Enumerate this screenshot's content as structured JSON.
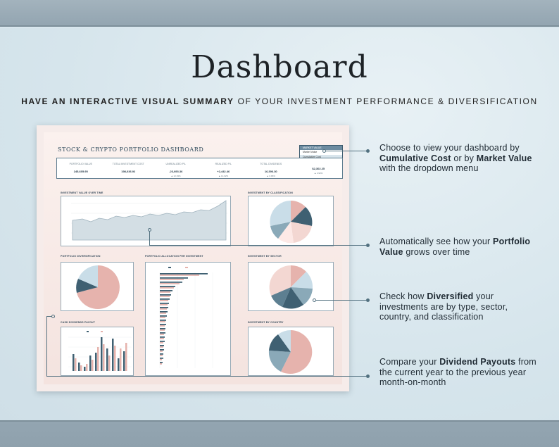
{
  "header": {
    "title": "Dashboard",
    "subtitle_bold": "HAVE AN INTERACTIVE VISUAL SUMMARY",
    "subtitle_rest": " OF YOUR INVESTMENT PERFORMANCE & DIVERSIFICATION"
  },
  "dashboard": {
    "title": "STOCK & CRYPTO PORTFOLIO DASHBOARD",
    "dropdown": {
      "selected": "MARKET VALUE",
      "options": [
        "Market Value",
        "Cumulative Cost"
      ]
    },
    "kpis": [
      {
        "label": "PORTFOLIO VALUE",
        "value": "245,605.95",
        "delta": ""
      },
      {
        "label": "TOTAL INVESTMENT COST",
        "value": "198,036.92",
        "delta": ""
      },
      {
        "label": "UNREALIZED P/L",
        "value": "-23,693.36",
        "delta": "▲ 12.03%"
      },
      {
        "label": "REALIZED P/L",
        "value": "+2,442.46",
        "delta": "▲ 14.92%"
      },
      {
        "label": "TOTAL DIVIDENDS",
        "value": "16,396.30",
        "delta": "▲ 0.96%"
      },
      {
        "label": "",
        "value": "$2,302.25",
        "delta": "▲ 2.92%"
      }
    ],
    "panels": {
      "value_over_time": "INVESTMENT VALUE OVER TIME",
      "by_classification": "INVESTMENT BY CLASSIFICATION",
      "diversification": "PORTFOLIO DIVERSIFICATION",
      "allocation": "PORTFOLIO ALLOCATION PER INVESTMENT",
      "by_sector": "INVESTMENT BY SECTOR",
      "dividends": "CASH DIVIDENDS PAYOUT",
      "by_country": "INVESTMENT BY COUNTRY"
    }
  },
  "notes": [
    {
      "pre": "Choose to view your dashboard by ",
      "b1": "Cumulative Cost",
      "mid": " or by ",
      "b2": "Market Value",
      "post": " with the dropdown menu"
    },
    {
      "pre": "Automatically see how your ",
      "b1": "Portfolio Value",
      "mid": " grows over time",
      "b2": "",
      "post": ""
    },
    {
      "pre": "Check how ",
      "b1": "Diversified",
      "mid": " your investments are by type, sector, country, and classification",
      "b2": "",
      "post": ""
    },
    {
      "pre": "Compare your ",
      "b1": "Dividend Payouts",
      "mid": " from the current year to the previous year month-on-month",
      "b2": "",
      "post": ""
    }
  ],
  "colors": {
    "navy": "#3f6072",
    "pink": "#e6b3ad",
    "light_blue": "#c9dde8",
    "steel": "#8aa9b8",
    "blush": "#f3d7d2"
  }
}
